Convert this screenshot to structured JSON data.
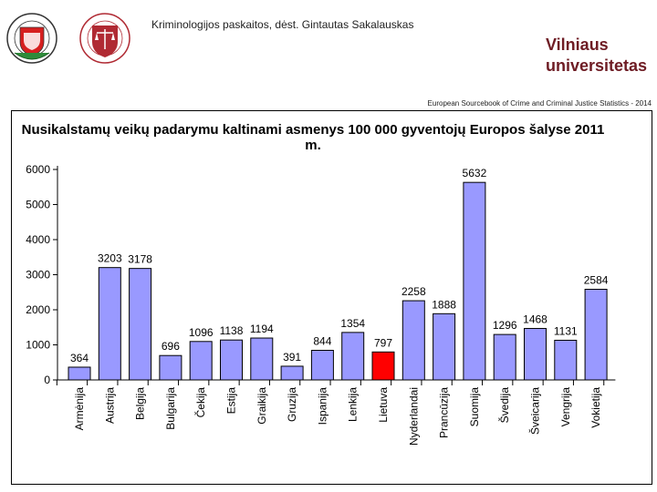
{
  "header": {
    "lecturer": "Kriminologijos paskaitos, dėst. Gintautas Sakalauskas",
    "university_name_line1": "Vilniaus",
    "university_name_line2": "universitetas",
    "source": "European Sourcebook of Crime and Criminal Justice Statistics - 2014"
  },
  "colors": {
    "bar": "#9999ff",
    "highlight": "#ff0000",
    "brand": "#6e1c24"
  },
  "chart_data": {
    "type": "bar",
    "title": "Nusikalstamų veikų padarymu kaltinami asmenys 100 000 gyventojų Europos šalyse 2011 m.",
    "xlabel": "",
    "ylabel": "",
    "ylim": [
      0,
      6000
    ],
    "yticks": [
      0,
      1000,
      2000,
      3000,
      4000,
      5000,
      6000
    ],
    "highlight_category": "Lietuva",
    "categories": [
      "Armėnija",
      "Austrija",
      "Belgija",
      "Bulgarija",
      "Čekija",
      "Estija",
      "Graikija",
      "Gruzija",
      "Ispanija",
      "Lenkija",
      "Lietuva",
      "Nyderlandai",
      "Prancūzija",
      "Suomija",
      "Švedija",
      "Šveicarija",
      "Vengrija",
      "Vokietija"
    ],
    "values": [
      364,
      3203,
      3178,
      696,
      1096,
      1138,
      1194,
      391,
      844,
      1354,
      797,
      2258,
      1888,
      5632,
      1296,
      1468,
      1131,
      2584
    ]
  }
}
